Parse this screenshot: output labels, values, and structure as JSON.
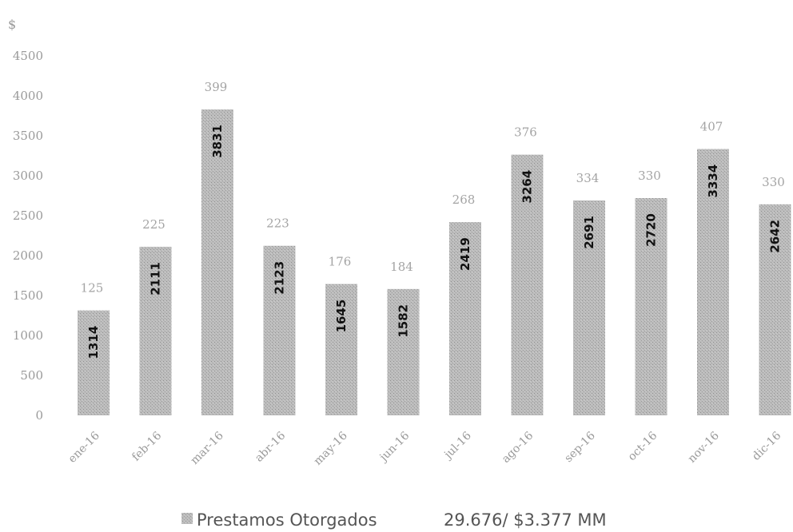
{
  "chart_data": {
    "type": "bar",
    "ylabel": "$",
    "ylim": [
      0,
      4500
    ],
    "yticks": [
      0,
      500,
      1000,
      1500,
      2000,
      2500,
      3000,
      3500,
      4000,
      4500
    ],
    "grid": false,
    "categories": [
      "ene-16",
      "feb-16",
      "mar-16",
      "abr-16",
      "may-16",
      "jun-16",
      "jul-16",
      "ago-16",
      "sep-16",
      "oct-16",
      "nov-16",
      "dic-16"
    ],
    "series": [
      {
        "name": "Prestamos Otorgados",
        "values": [
          1314,
          2111,
          3831,
          2123,
          1645,
          1582,
          2419,
          3264,
          2691,
          2720,
          3334,
          2642
        ],
        "count_labels": [
          125,
          225,
          399,
          223,
          176,
          184,
          268,
          376,
          334,
          330,
          407,
          330
        ]
      }
    ],
    "legend": {
      "position": "bottom",
      "label": "Prestamos Otorgados",
      "summary": "29.676/ $3.377 MM"
    },
    "colors": {
      "bar": "#b3b3b3",
      "bar_pattern": "#9c9c9c"
    }
  }
}
